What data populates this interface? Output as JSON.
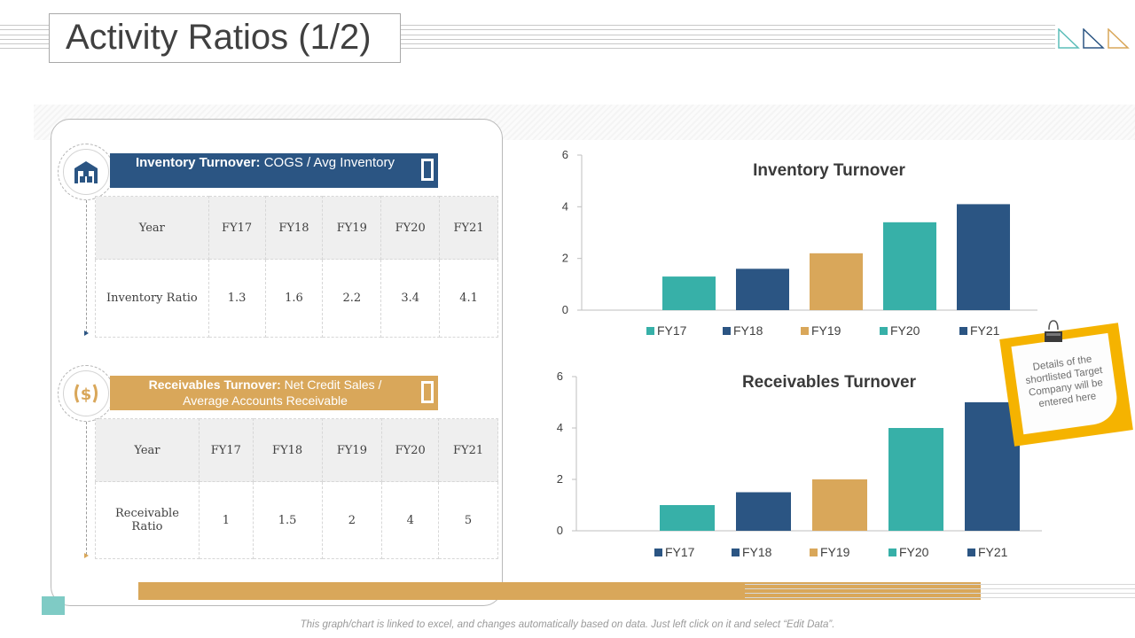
{
  "page": {
    "title": "Activity Ratios (1/2)"
  },
  "inventory": {
    "header_bold": "Inventory Turnover:",
    "header_rest": " COGS / Avg Inventory",
    "year_label": "Year",
    "years": [
      "FY17",
      "FY18",
      "FY19",
      "FY20",
      "FY21"
    ],
    "row_label": "Inventory Ratio",
    "values": [
      "1.3",
      "1.6",
      "2.2",
      "3.4",
      "4.1"
    ]
  },
  "receivables": {
    "header_bold": "Receivables Turnover:",
    "header_rest": " Net Credit Sales / Average Accounts Receivable",
    "year_label": "Year",
    "years": [
      "FY17",
      "FY18",
      "FY19",
      "FY20",
      "FY21"
    ],
    "row_label": "Receivable Ratio",
    "values": [
      "1",
      "1.5",
      "2",
      "4",
      "5"
    ]
  },
  "chart_data": [
    {
      "type": "bar",
      "title": "Inventory Turnover",
      "categories": [
        "FY17",
        "FY18",
        "FY19",
        "FY20",
        "FY21"
      ],
      "values": [
        1.3,
        1.6,
        2.2,
        3.4,
        4.1
      ],
      "colors": [
        "#37b0a8",
        "#2b5583",
        "#d9a75a",
        "#37b0a8",
        "#2b5583"
      ],
      "ylim": [
        0,
        6
      ],
      "yticks": [
        0,
        2,
        4,
        6
      ],
      "legend": "bottom"
    },
    {
      "type": "bar",
      "title": "Receivables Turnover",
      "categories": [
        "FY17",
        "FY18",
        "FY19",
        "FY20",
        "FY21"
      ],
      "values": [
        1,
        1.5,
        2,
        4,
        5
      ],
      "colors": [
        "#37b0a8",
        "#2b5583",
        "#d9a75a",
        "#37b0a8",
        "#2b5583"
      ],
      "legend_colors": [
        "#2b5583",
        "#2b5583",
        "#d9a75a",
        "#37b0a8",
        "#2b5583"
      ],
      "ylim": [
        0,
        6
      ],
      "yticks": [
        0,
        2,
        4,
        6
      ],
      "legend": "bottom"
    }
  ],
  "note": {
    "text": "Details of the shortlisted Target Company will be entered here"
  },
  "footer": {
    "text": "This graph/chart is linked to excel, and changes automatically based on data. Just left click on it and select “Edit Data”."
  },
  "colors": {
    "navy": "#2b5583",
    "gold": "#d9a75a",
    "teal": "#37b0a8"
  },
  "icons": [
    "warehouse-icon",
    "dollar-icon"
  ]
}
